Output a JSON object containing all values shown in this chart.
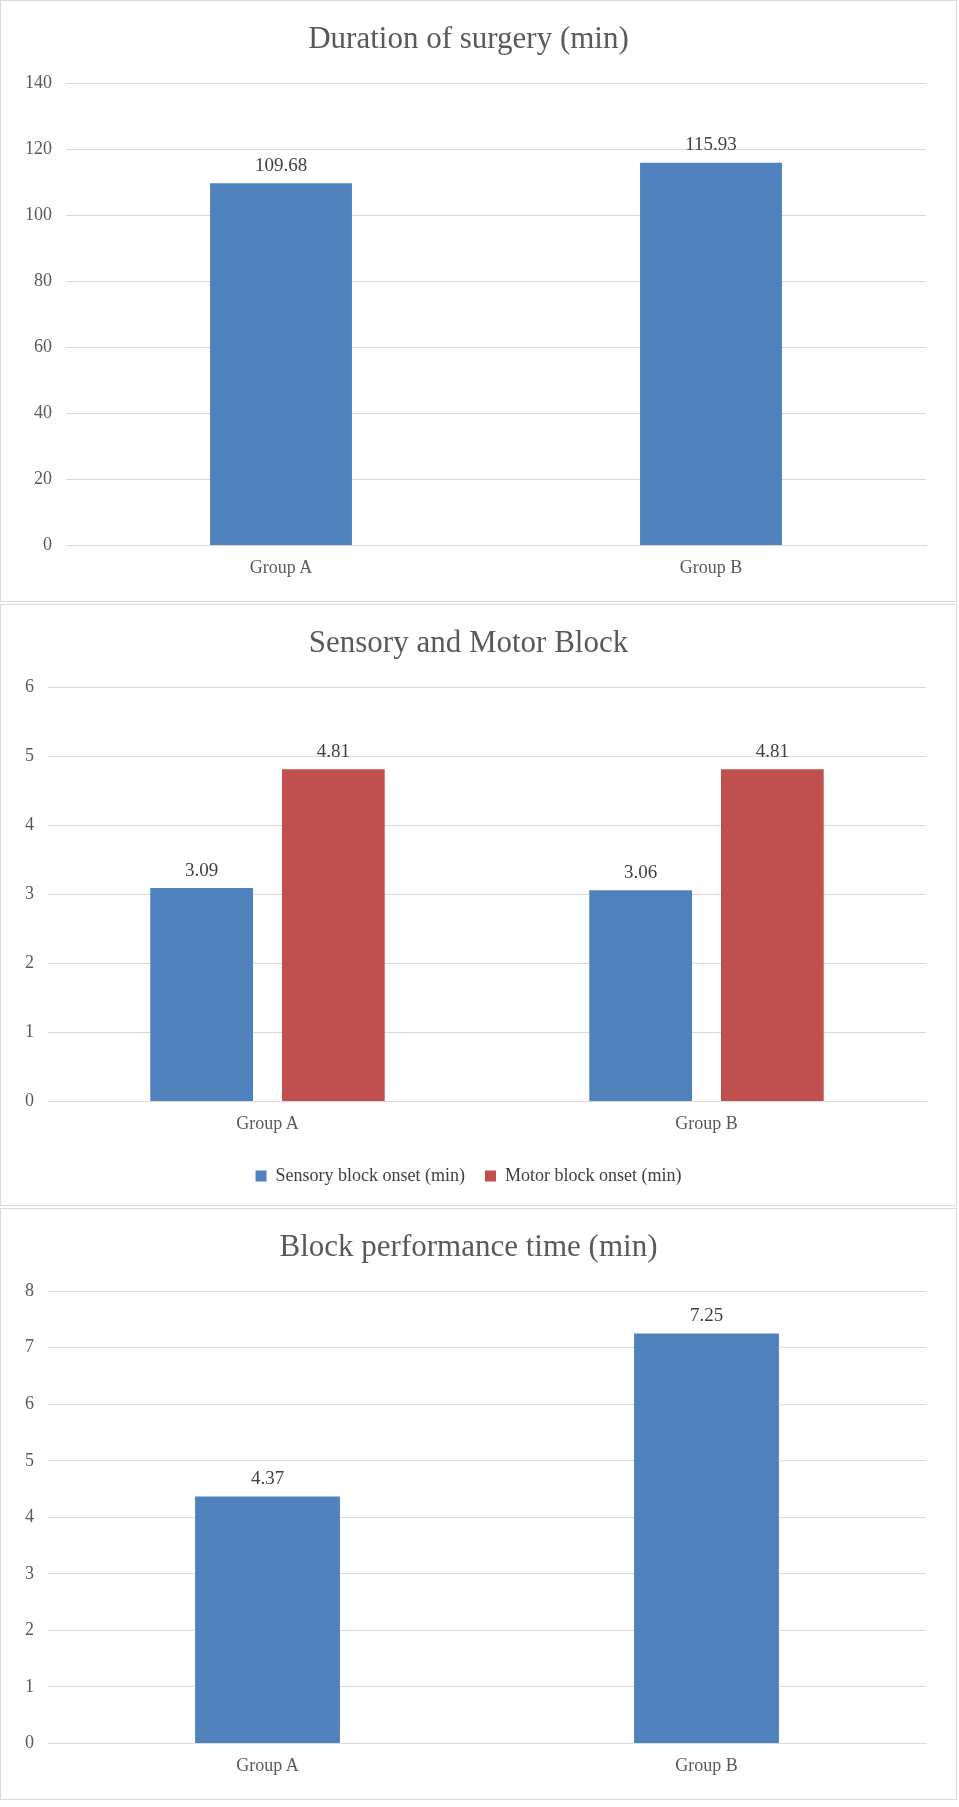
{
  "chart_data": [
    {
      "type": "bar",
      "title": "Duration of surgery (min)",
      "categories": [
        "Group A",
        "Group B"
      ],
      "series": [
        {
          "color": "#4f81bd",
          "values": [
            109.68,
            115.93
          ]
        }
      ],
      "ylim": [
        0,
        140
      ],
      "yticks": [
        0,
        20,
        40,
        60,
        80,
        100,
        120,
        140
      ],
      "grid": "y",
      "data_labels": true,
      "legend": false
    },
    {
      "type": "bar",
      "title": "Sensory and Motor Block",
      "categories": [
        "Group A",
        "Group B"
      ],
      "series": [
        {
          "name": "Sensory block onset (min)",
          "color": "#4f81bd",
          "values": [
            3.09,
            3.06
          ]
        },
        {
          "name": "Motor block onset (min)",
          "color": "#c0504d",
          "values": [
            4.81,
            4.81
          ]
        }
      ],
      "ylim": [
        0,
        6
      ],
      "yticks": [
        0,
        1,
        2,
        3,
        4,
        5,
        6
      ],
      "grid": "y",
      "data_labels": true,
      "legend": "bottom"
    },
    {
      "type": "bar",
      "title": "Block performance time (min)",
      "categories": [
        "Group A",
        "Group B"
      ],
      "series": [
        {
          "color": "#4f81bd",
          "values": [
            4.37,
            7.25
          ]
        }
      ],
      "ylim": [
        0,
        8
      ],
      "yticks": [
        0,
        1,
        2,
        3,
        4,
        5,
        6,
        7,
        8
      ],
      "grid": "y",
      "data_labels": true,
      "legend": false
    }
  ]
}
